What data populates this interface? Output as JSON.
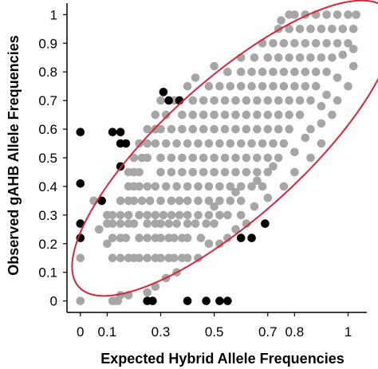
{
  "chart_data": {
    "type": "scatter",
    "xlabel": "Expected Hybrid Allele Frequencies",
    "ylabel": "Observed gAHB Allele Frequencies",
    "xlim": [
      -0.05,
      1.07
    ],
    "ylim": [
      -0.04,
      1.04
    ],
    "xticks": [
      0,
      0.1,
      0.3,
      0.5,
      0.7,
      0.8,
      1
    ],
    "yticks": [
      0,
      0.1,
      0.2,
      0.3,
      0.4,
      0.5,
      0.6,
      0.7,
      0.8,
      0.9,
      1
    ],
    "grid": false,
    "colors": {
      "gray_points": "#a6a6a6",
      "black_points": "#000000",
      "ellipse": "#d9263a"
    },
    "series": [
      {
        "color": "#a6a6a6",
        "points": [
          [
            0,
            0
          ],
          [
            0,
            0.15
          ],
          [
            0.05,
            0.35
          ],
          [
            0.07,
            0.25
          ],
          [
            0.08,
            0.35
          ],
          [
            0.1,
            0.2
          ],
          [
            0.1,
            0.27
          ],
          [
            0.1,
            0.3
          ],
          [
            0.12,
            0
          ],
          [
            0.13,
            0
          ],
          [
            0.14,
            0
          ],
          [
            0.12,
            0.15
          ],
          [
            0.15,
            0.15
          ],
          [
            0.18,
            0.15
          ],
          [
            0.12,
            0.22
          ],
          [
            0.15,
            0.22
          ],
          [
            0.17,
            0.22
          ],
          [
            0.12,
            0.27
          ],
          [
            0.15,
            0.27
          ],
          [
            0.18,
            0.27
          ],
          [
            0.2,
            0.27
          ],
          [
            0.12,
            0.3
          ],
          [
            0.15,
            0.3
          ],
          [
            0.18,
            0.3
          ],
          [
            0.22,
            0.3
          ],
          [
            0.15,
            0.35
          ],
          [
            0.18,
            0.35
          ],
          [
            0.2,
            0.35
          ],
          [
            0.23,
            0.35
          ],
          [
            0.18,
            0.4
          ],
          [
            0.2,
            0.4
          ],
          [
            0.22,
            0.4
          ],
          [
            0.25,
            0.4
          ],
          [
            0.18,
            0.45
          ],
          [
            0.2,
            0.45
          ],
          [
            0.22,
            0.45
          ],
          [
            0.2,
            0.5
          ],
          [
            0.23,
            0.5
          ],
          [
            0.25,
            0.5
          ],
          [
            0.22,
            0.55
          ],
          [
            0.25,
            0.55
          ],
          [
            0.28,
            0.55
          ],
          [
            0.25,
            0.6
          ],
          [
            0.28,
            0.6
          ],
          [
            0.3,
            0.6
          ],
          [
            0.28,
            0.65
          ],
          [
            0.32,
            0.65
          ],
          [
            0.3,
            0.7
          ],
          [
            0.35,
            0.7
          ],
          [
            0.4,
            0.75
          ],
          [
            0.43,
            0.78
          ],
          [
            0.5,
            0.82
          ],
          [
            0.2,
            0.15
          ],
          [
            0.22,
            0.15
          ],
          [
            0.25,
            0.15
          ],
          [
            0.28,
            0.15
          ],
          [
            0.3,
            0.15
          ],
          [
            0.33,
            0.15
          ],
          [
            0.35,
            0.15
          ],
          [
            0.38,
            0.15
          ],
          [
            0.4,
            0.15
          ],
          [
            0.22,
            0.22
          ],
          [
            0.25,
            0.22
          ],
          [
            0.28,
            0.22
          ],
          [
            0.3,
            0.22
          ],
          [
            0.33,
            0.22
          ],
          [
            0.35,
            0.22
          ],
          [
            0.38,
            0.22
          ],
          [
            0.4,
            0.22
          ],
          [
            0.45,
            0.22
          ],
          [
            0.25,
            0.27
          ],
          [
            0.28,
            0.27
          ],
          [
            0.3,
            0.27
          ],
          [
            0.33,
            0.27
          ],
          [
            0.36,
            0.27
          ],
          [
            0.4,
            0.27
          ],
          [
            0.43,
            0.27
          ],
          [
            0.47,
            0.27
          ],
          [
            0.5,
            0.27
          ],
          [
            0.25,
            0.3
          ],
          [
            0.28,
            0.3
          ],
          [
            0.31,
            0.3
          ],
          [
            0.34,
            0.3
          ],
          [
            0.37,
            0.3
          ],
          [
            0.4,
            0.3
          ],
          [
            0.44,
            0.3
          ],
          [
            0.48,
            0.3
          ],
          [
            0.52,
            0.3
          ],
          [
            0.55,
            0.3
          ],
          [
            0.26,
            0.35
          ],
          [
            0.3,
            0.35
          ],
          [
            0.34,
            0.35
          ],
          [
            0.37,
            0.35
          ],
          [
            0.4,
            0.35
          ],
          [
            0.44,
            0.35
          ],
          [
            0.48,
            0.35
          ],
          [
            0.52,
            0.35
          ],
          [
            0.56,
            0.35
          ],
          [
            0.6,
            0.35
          ],
          [
            0.28,
            0.4
          ],
          [
            0.32,
            0.4
          ],
          [
            0.36,
            0.4
          ],
          [
            0.4,
            0.4
          ],
          [
            0.44,
            0.4
          ],
          [
            0.48,
            0.4
          ],
          [
            0.52,
            0.4
          ],
          [
            0.56,
            0.4
          ],
          [
            0.6,
            0.4
          ],
          [
            0.64,
            0.4
          ],
          [
            0.68,
            0.4
          ],
          [
            0.3,
            0.45
          ],
          [
            0.34,
            0.45
          ],
          [
            0.38,
            0.45
          ],
          [
            0.42,
            0.45
          ],
          [
            0.46,
            0.45
          ],
          [
            0.5,
            0.45
          ],
          [
            0.54,
            0.45
          ],
          [
            0.58,
            0.45
          ],
          [
            0.62,
            0.45
          ],
          [
            0.66,
            0.45
          ],
          [
            0.7,
            0.45
          ],
          [
            0.3,
            0.5
          ],
          [
            0.34,
            0.5
          ],
          [
            0.38,
            0.5
          ],
          [
            0.42,
            0.5
          ],
          [
            0.46,
            0.5
          ],
          [
            0.5,
            0.5
          ],
          [
            0.54,
            0.5
          ],
          [
            0.58,
            0.5
          ],
          [
            0.62,
            0.5
          ],
          [
            0.66,
            0.5
          ],
          [
            0.7,
            0.5
          ],
          [
            0.74,
            0.5
          ],
          [
            0.32,
            0.55
          ],
          [
            0.36,
            0.55
          ],
          [
            0.4,
            0.55
          ],
          [
            0.44,
            0.55
          ],
          [
            0.48,
            0.55
          ],
          [
            0.52,
            0.55
          ],
          [
            0.56,
            0.55
          ],
          [
            0.6,
            0.55
          ],
          [
            0.64,
            0.55
          ],
          [
            0.68,
            0.55
          ],
          [
            0.72,
            0.55
          ],
          [
            0.76,
            0.55
          ],
          [
            0.34,
            0.6
          ],
          [
            0.38,
            0.6
          ],
          [
            0.42,
            0.6
          ],
          [
            0.46,
            0.6
          ],
          [
            0.5,
            0.6
          ],
          [
            0.54,
            0.6
          ],
          [
            0.58,
            0.6
          ],
          [
            0.62,
            0.6
          ],
          [
            0.66,
            0.6
          ],
          [
            0.7,
            0.6
          ],
          [
            0.74,
            0.6
          ],
          [
            0.78,
            0.6
          ],
          [
            0.38,
            0.65
          ],
          [
            0.42,
            0.65
          ],
          [
            0.46,
            0.65
          ],
          [
            0.5,
            0.65
          ],
          [
            0.54,
            0.65
          ],
          [
            0.58,
            0.65
          ],
          [
            0.62,
            0.65
          ],
          [
            0.66,
            0.65
          ],
          [
            0.7,
            0.65
          ],
          [
            0.74,
            0.65
          ],
          [
            0.78,
            0.65
          ],
          [
            0.82,
            0.65
          ],
          [
            0.42,
            0.7
          ],
          [
            0.46,
            0.7
          ],
          [
            0.5,
            0.7
          ],
          [
            0.54,
            0.7
          ],
          [
            0.58,
            0.7
          ],
          [
            0.62,
            0.7
          ],
          [
            0.66,
            0.7
          ],
          [
            0.7,
            0.7
          ],
          [
            0.74,
            0.7
          ],
          [
            0.78,
            0.7
          ],
          [
            0.82,
            0.7
          ],
          [
            0.86,
            0.7
          ],
          [
            0.48,
            0.75
          ],
          [
            0.52,
            0.75
          ],
          [
            0.56,
            0.75
          ],
          [
            0.6,
            0.75
          ],
          [
            0.64,
            0.75
          ],
          [
            0.68,
            0.75
          ],
          [
            0.72,
            0.75
          ],
          [
            0.76,
            0.75
          ],
          [
            0.8,
            0.75
          ],
          [
            0.84,
            0.75
          ],
          [
            0.88,
            0.75
          ],
          [
            0.55,
            0.8
          ],
          [
            0.6,
            0.8
          ],
          [
            0.64,
            0.8
          ],
          [
            0.68,
            0.8
          ],
          [
            0.72,
            0.8
          ],
          [
            0.76,
            0.8
          ],
          [
            0.8,
            0.8
          ],
          [
            0.84,
            0.8
          ],
          [
            0.88,
            0.8
          ],
          [
            0.92,
            0.8
          ],
          [
            0.6,
            0.85
          ],
          [
            0.65,
            0.85
          ],
          [
            0.7,
            0.85
          ],
          [
            0.74,
            0.85
          ],
          [
            0.78,
            0.85
          ],
          [
            0.82,
            0.85
          ],
          [
            0.86,
            0.85
          ],
          [
            0.9,
            0.85
          ],
          [
            0.94,
            0.85
          ],
          [
            0.68,
            0.9
          ],
          [
            0.72,
            0.9
          ],
          [
            0.76,
            0.9
          ],
          [
            0.8,
            0.9
          ],
          [
            0.84,
            0.9
          ],
          [
            0.88,
            0.9
          ],
          [
            0.92,
            0.9
          ],
          [
            0.96,
            0.9
          ],
          [
            1,
            0.9
          ],
          [
            0.74,
            0.95
          ],
          [
            0.78,
            0.95
          ],
          [
            0.82,
            0.95
          ],
          [
            0.86,
            0.95
          ],
          [
            0.9,
            0.95
          ],
          [
            0.94,
            0.95
          ],
          [
            0.98,
            0.95
          ],
          [
            1.02,
            0.95
          ],
          [
            0.8,
            1
          ],
          [
            0.84,
            1
          ],
          [
            0.88,
            1
          ],
          [
            0.92,
            1
          ],
          [
            0.96,
            1
          ],
          [
            1,
            1
          ],
          [
            1.03,
            1
          ],
          [
            0.78,
            1
          ],
          [
            0.75,
            0.98
          ],
          [
            0.86,
            0.6
          ],
          [
            0.9,
            0.62
          ],
          [
            0.94,
            0.65
          ],
          [
            0.9,
            0.68
          ],
          [
            0.96,
            0.7
          ],
          [
            0.92,
            0.72
          ],
          [
            1,
            0.75
          ],
          [
            0.96,
            0.78
          ],
          [
            1.02,
            0.82
          ],
          [
            0.98,
            0.86
          ],
          [
            1.02,
            0.88
          ],
          [
            0.84,
            0.57
          ],
          [
            0.8,
            0.52
          ],
          [
            0.72,
            0.47
          ],
          [
            0.66,
            0.42
          ],
          [
            0.58,
            0.38
          ],
          [
            0.5,
            0.33
          ],
          [
            0.62,
            0.27
          ],
          [
            0.58,
            0.25
          ],
          [
            0.55,
            0.22
          ],
          [
            0.52,
            0.2
          ],
          [
            0.48,
            0.2
          ],
          [
            0.44,
            0.15
          ],
          [
            0.36,
            0.1
          ],
          [
            0.32,
            0.08
          ],
          [
            0.28,
            0.05
          ],
          [
            0.25,
            0.03
          ],
          [
            0.18,
            0.02
          ],
          [
            0.15,
            0.02
          ],
          [
            0.6,
            0.3
          ],
          [
            0.65,
            0.33
          ],
          [
            0.7,
            0.36
          ],
          [
            0.76,
            0.4
          ],
          [
            0.8,
            0.45
          ],
          [
            0.86,
            0.5
          ],
          [
            0.9,
            0.55
          ]
        ]
      },
      {
        "color": "#000000",
        "points": [
          [
            0,
            0.59
          ],
          [
            0,
            0.41
          ],
          [
            0,
            0.27
          ],
          [
            0,
            0.22
          ],
          [
            0.08,
            0.35
          ],
          [
            0.12,
            0.59
          ],
          [
            0.15,
            0.55
          ],
          [
            0.15,
            0.59
          ],
          [
            0.15,
            0.47
          ],
          [
            0.17,
            0.55
          ],
          [
            0.31,
            0.73
          ],
          [
            0.33,
            0.7
          ],
          [
            0.37,
            0.7
          ],
          [
            0.6,
            0.22
          ],
          [
            0.64,
            0.22
          ],
          [
            0.69,
            0.27
          ],
          [
            0.25,
            0
          ],
          [
            0.27,
            0
          ],
          [
            0.4,
            0
          ],
          [
            0.47,
            0
          ],
          [
            0.52,
            0
          ],
          [
            0.55,
            0
          ]
        ]
      }
    ]
  }
}
